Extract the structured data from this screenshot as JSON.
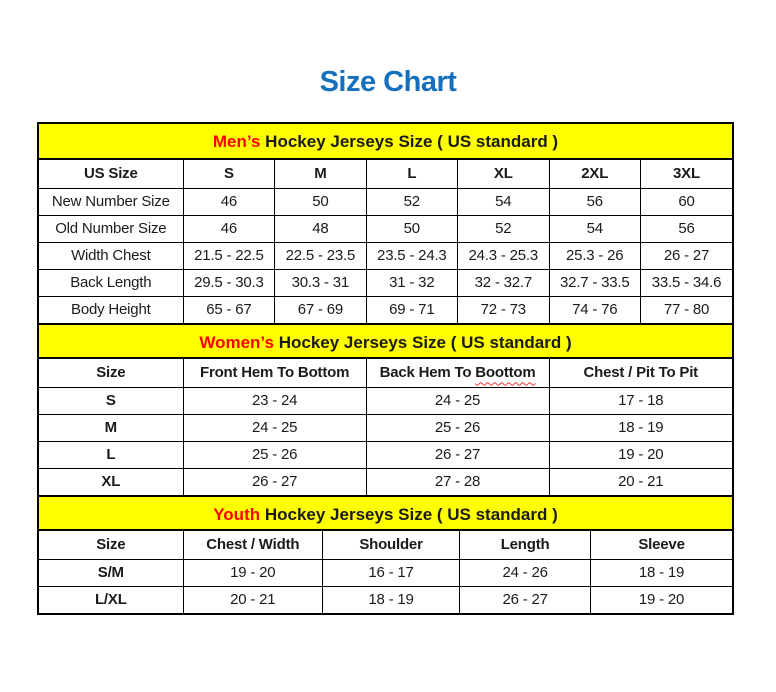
{
  "page": {
    "title": "Size Chart"
  },
  "colors": {
    "title_blue": "#1470bd",
    "band_yellow": "#ffff00",
    "highlight_red": "#ff0000",
    "border_black": "#000000"
  },
  "sections": {
    "men": {
      "header": {
        "highlight": "Men’s",
        "rest": "Hockey Jerseys Size ( US standard )"
      },
      "columns": [
        "US Size",
        "S",
        "M",
        "L",
        "XL",
        "2XL",
        "3XL"
      ],
      "rows": [
        {
          "label": "New Number Size",
          "values": [
            "46",
            "50",
            "52",
            "54",
            "56",
            "60"
          ]
        },
        {
          "label": "Old Number Size",
          "values": [
            "46",
            "48",
            "50",
            "52",
            "54",
            "56"
          ]
        },
        {
          "label": "Width Chest",
          "values": [
            "21.5 - 22.5",
            "22.5 - 23.5",
            "23.5 - 24.3",
            "24.3 - 25.3",
            "25.3 - 26",
            "26 - 27"
          ]
        },
        {
          "label": "Back Length",
          "values": [
            "29.5 - 30.3",
            "30.3 - 31",
            "31 - 32",
            "32 - 32.7",
            "32.7 - 33.5",
            "33.5 - 34.6"
          ]
        },
        {
          "label": "Body Height",
          "values": [
            "65 - 67",
            "67 - 69",
            "69 - 71",
            "72 - 73",
            "74 - 76",
            "77 - 80"
          ]
        }
      ]
    },
    "women": {
      "header": {
        "highlight": "Women’s",
        "rest": "Hockey Jerseys Size ( US standard )"
      },
      "columns": {
        "c0": "Size",
        "c1": "Front Hem To Bottom",
        "c2_prefix": "Back Hem To",
        "c2_misspelled": "Boottom",
        "c3": "Chest / Pit To Pit"
      },
      "rows": [
        {
          "label": "S",
          "values": [
            "23 - 24",
            "24 - 25",
            "17 - 18"
          ]
        },
        {
          "label": "M",
          "values": [
            "24 - 25",
            "25 - 26",
            "18 - 19"
          ]
        },
        {
          "label": "L",
          "values": [
            "25 - 26",
            "26 - 27",
            "19 - 20"
          ]
        },
        {
          "label": "XL",
          "values": [
            "26 - 27",
            "27 - 28",
            "20 - 21"
          ]
        }
      ]
    },
    "youth": {
      "header": {
        "highlight": "Youth",
        "rest": "Hockey Jerseys Size ( US standard )"
      },
      "columns": [
        "Size",
        "Chest / Width",
        "Shoulder",
        "Length",
        "Sleeve"
      ],
      "rows": [
        {
          "label": "S/M",
          "values": [
            "19 - 20",
            "16 - 17",
            "24 - 26",
            "18 - 19"
          ]
        },
        {
          "label": "L/XL",
          "values": [
            "20 - 21",
            "18 - 19",
            "26 - 27",
            "19 - 20"
          ]
        }
      ]
    }
  }
}
